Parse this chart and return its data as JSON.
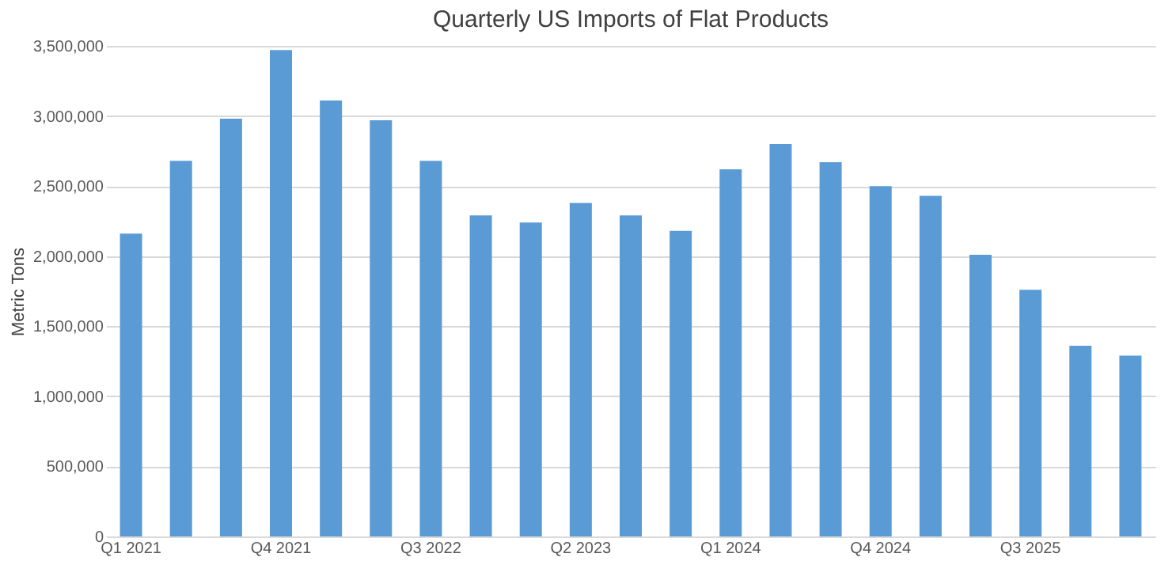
{
  "chart_data": {
    "type": "bar",
    "title": "Quarterly US Imports of Flat Products",
    "ylabel": "Metric Tons",
    "categories": [
      "Q1 2021",
      null,
      null,
      "Q4 2021",
      null,
      null,
      "Q3 2022",
      null,
      null,
      "Q2 2023",
      null,
      null,
      "Q1 2024",
      null,
      null,
      "Q4 2024",
      null,
      null,
      "Q3 2025",
      null,
      null
    ],
    "values": [
      2160000,
      2680000,
      2980000,
      3470000,
      3110000,
      2970000,
      2680000,
      2290000,
      2240000,
      2380000,
      2290000,
      2180000,
      2620000,
      2800000,
      2670000,
      2500000,
      2430000,
      2010000,
      1760000,
      1360000,
      1290000
    ],
    "color": "#5b9bd5",
    "ylim": [
      0,
      3500000
    ],
    "yticks": [
      0,
      {
        "value": 500000,
        "label": "500,000"
      },
      {
        "value": 1000000,
        "label": "1,000,000"
      },
      {
        "value": 1500000,
        "label": "1,500,000"
      },
      {
        "value": 2000000,
        "label": "2,000,000"
      },
      {
        "value": 2500000,
        "label": "2,500,000"
      },
      {
        "value": 3000000,
        "label": "3,000,000"
      },
      {
        "value": 3500000,
        "label": "3,500,000"
      }
    ],
    "grid": "y"
  }
}
